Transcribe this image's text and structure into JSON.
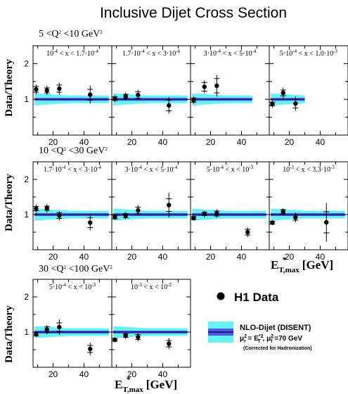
{
  "title": "Inclusive Dijet Cross Section",
  "ylabel": "Data/Theory",
  "xlabel_main": "E",
  "xlabel_sub": "T,max",
  "xlabel_sup": "*",
  "xlabel_unit": "[GeV]",
  "tick_labels": {
    "y": [
      "1",
      "2"
    ],
    "x": [
      "20",
      "40"
    ]
  },
  "legend": {
    "data_label": "H1 Data",
    "theory_label": "NLO-Dijet (DISENT)",
    "scale_mu_r": "μ",
    "scale_rest_1": " = E",
    "scale_rest_2": " ,  μ",
    "scale_rest_3": " =70 GeV",
    "scale_sub_r": "r",
    "scale_sub_f": "f",
    "scale_sup_2a": "2",
    "scale_sup_2b": "*2",
    "scale_sup_2c": "2",
    "scale_sub_t": "T",
    "note": "(Corrected for Hadronization)"
  },
  "colors": {
    "band_outer": "#66f2f8",
    "band_inner": "#4b59e6",
    "band_line": "#1a1a7a",
    "marker": "#000000"
  },
  "chart_data": {
    "type": "scatter",
    "title": "Inclusive Dijet Cross Section",
    "ylabel": "Data/Theory",
    "xlabel": "E*T,max [GeV]",
    "ylim": [
      0,
      2.5
    ],
    "xlim": [
      7,
      58
    ],
    "rows": [
      {
        "q2_label": "5 <Q² <10 GeV²",
        "panels": [
          {
            "x_label": "10⁻⁴ < x < 1.7·10⁻⁴",
            "x": [
              9,
              16,
              24,
              44
            ],
            "y": [
              1.28,
              1.25,
              1.3,
              1.13
            ],
            "yerr_stat": [
              0.08,
              0.07,
              0.1,
              0.15
            ],
            "yerr_tot": [
              0.14,
              0.13,
              0.17,
              0.25
            ],
            "band_xmax": 56
          },
          {
            "x_label": "1.7·10⁻⁴ < x < 3·10⁻⁴",
            "x": [
              9,
              16,
              24,
              44
            ],
            "y": [
              1.02,
              1.08,
              1.12,
              0.83
            ],
            "yerr_stat": [
              0.05,
              0.06,
              0.09,
              0.15
            ],
            "yerr_tot": [
              0.1,
              0.11,
              0.15,
              0.23
            ],
            "band_xmax": 56
          },
          {
            "x_label": "3·10⁻⁴ < x < 5·10⁻⁴",
            "x": [
              9,
              16,
              24
            ],
            "y": [
              0.98,
              1.35,
              1.38
            ],
            "yerr_stat": [
              0.06,
              0.12,
              0.2
            ],
            "yerr_tot": [
              0.1,
              0.18,
              0.3
            ],
            "band_xmax": 47
          },
          {
            "x_label": "5·10⁻⁴ < x < 1.0·10⁻³",
            "x": [
              9,
              16,
              24
            ],
            "y": [
              0.87,
              1.18,
              0.88
            ],
            "yerr_stat": [
              0.05,
              0.08,
              0.12
            ],
            "yerr_tot": [
              0.1,
              0.15,
              0.2
            ],
            "band_xmax": 30
          }
        ]
      },
      {
        "q2_label": "10 <Q² <30 GeV²",
        "panels": [
          {
            "x_label": "1.7·10⁻⁴ < x < 3·10⁻⁴",
            "x": [
              9,
              16,
              24,
              44
            ],
            "y": [
              1.17,
              1.18,
              0.97,
              0.77
            ],
            "yerr_stat": [
              0.06,
              0.06,
              0.08,
              0.14
            ],
            "yerr_tot": [
              0.12,
              0.12,
              0.13,
              0.22
            ],
            "band_xmax": 56
          },
          {
            "x_label": "3·10⁻⁴ < x < 5·10⁻⁴",
            "x": [
              9,
              16,
              24,
              44
            ],
            "y": [
              0.93,
              0.97,
              1.12,
              1.27
            ],
            "yerr_stat": [
              0.05,
              0.06,
              0.09,
              0.18
            ],
            "yerr_tot": [
              0.08,
              0.1,
              0.15,
              0.35
            ],
            "band_xmax": 56
          },
          {
            "x_label": "5·10⁻⁴ < x < 10⁻³",
            "x": [
              9,
              16,
              24,
              44
            ],
            "y": [
              0.9,
              1.02,
              1.03,
              0.5
            ],
            "yerr_stat": [
              0.04,
              0.05,
              0.07,
              0.08
            ],
            "yerr_tot": [
              0.07,
              0.09,
              0.12,
              0.14
            ],
            "band_xmax": 56
          },
          {
            "x_label": "10⁻³ < x < 3.3·10⁻³",
            "x": [
              9,
              16,
              24,
              44
            ],
            "y": [
              0.77,
              1.08,
              0.92,
              0.78
            ],
            "yerr_stat": [
              0.04,
              0.06,
              0.08,
              0.3
            ],
            "yerr_tot": [
              0.07,
              0.1,
              0.14,
              0.55
            ],
            "band_xmax": 56
          }
        ]
      },
      {
        "q2_label": "30 <Q² <100 GeV²",
        "panels": [
          {
            "x_label": "5·10⁻⁴ < x < 10⁻³",
            "x": [
              9,
              16,
              24,
              44
            ],
            "y": [
              0.94,
              1.07,
              1.14,
              0.52
            ],
            "yerr_stat": [
              0.05,
              0.08,
              0.12,
              0.1
            ],
            "yerr_tot": [
              0.08,
              0.13,
              0.22,
              0.18
            ],
            "band_xmax": 56
          },
          {
            "x_label": "10⁻³ < x < 10⁻²",
            "x": [
              9,
              16,
              24,
              44
            ],
            "y": [
              0.78,
              0.9,
              0.86,
              0.67
            ],
            "yerr_stat": [
              0.04,
              0.05,
              0.07,
              0.09
            ],
            "yerr_tot": [
              0.07,
              0.1,
              0.12,
              0.16
            ],
            "band_xmax": 56
          }
        ]
      }
    ],
    "theory_band": {
      "center": 1.0,
      "outer_halfwidth_low_et": 0.17,
      "outer_halfwidth_high_et": 0.11,
      "inner_halfwidth": 0.04
    }
  }
}
